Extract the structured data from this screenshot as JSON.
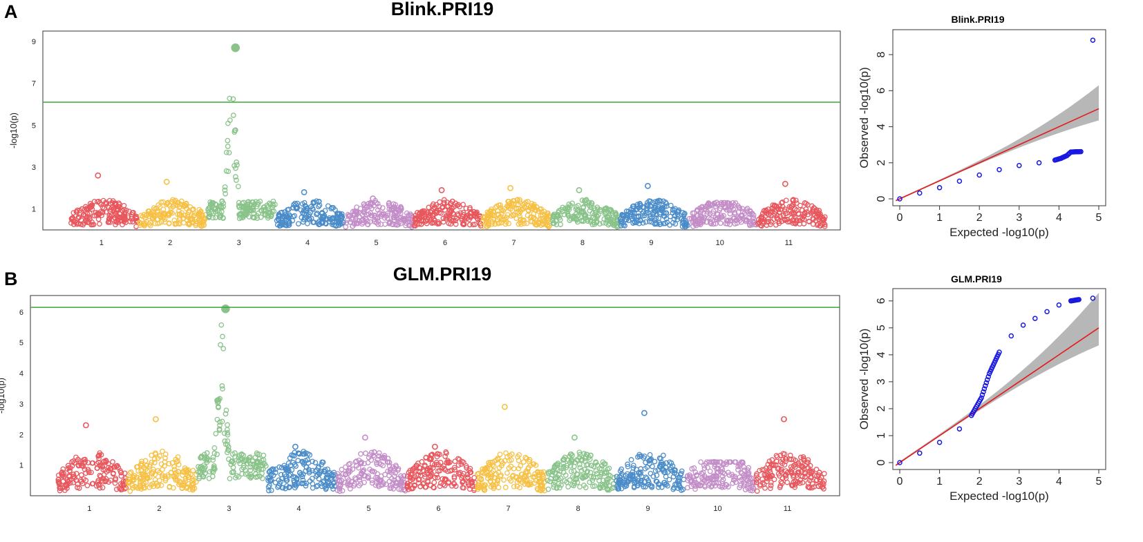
{
  "panels": [
    {
      "letter": "A",
      "chart_data": [
        {
          "type": "scatter",
          "kind": "manhattan",
          "title": "Blink.PRI19",
          "ylabel": "-log10(p)",
          "xlabel": "",
          "chromosomes": [
            "1",
            "2",
            "3",
            "4",
            "5",
            "6",
            "7",
            "8",
            "9",
            "10",
            "11"
          ],
          "chromosome_colors": [
            "#e8575d",
            "#f6c044",
            "#89c38a",
            "#4a8cc9",
            "#c38dc8",
            "#e8575d",
            "#f6c044",
            "#89c38a",
            "#4a8cc9",
            "#c38dc8",
            "#e8575d"
          ],
          "y_ticks": [
            1,
            3,
            5,
            7,
            9
          ],
          "ylim": [
            0,
            9.3
          ],
          "threshold": 6.1,
          "threshold_color": "#3aa63a",
          "chromosome_peak_values": [
            2.6,
            2.3,
            8.7,
            1.8,
            1.5,
            1.9,
            2.0,
            1.9,
            2.1,
            1.3,
            2.2
          ],
          "top_hit": {
            "chromosome": "3",
            "value": 8.7
          }
        },
        {
          "type": "scatter",
          "kind": "qq",
          "title": "Blink.PRI19",
          "xlabel": "Expected -log10(p)",
          "ylabel": "Observed -log10(p)",
          "x_ticks": [
            0,
            1,
            2,
            3,
            4,
            5
          ],
          "y_ticks": [
            0,
            2,
            4,
            6,
            8
          ],
          "xlim": [
            0,
            5
          ],
          "ylim": [
            0,
            9
          ],
          "point_color": "#1818e0",
          "line_color": "#e41a1c",
          "band_color": "#aaaaaa",
          "points": [
            [
              0,
              0
            ],
            [
              0.5,
              0.32
            ],
            [
              1,
              0.62
            ],
            [
              1.5,
              0.98
            ],
            [
              2,
              1.32
            ],
            [
              2.5,
              1.62
            ],
            [
              3,
              1.85
            ],
            [
              3.5,
              2.0
            ],
            [
              3.9,
              2.15
            ],
            [
              4.05,
              2.25
            ],
            [
              4.2,
              2.4
            ],
            [
              4.3,
              2.6
            ],
            [
              4.55,
              2.62
            ],
            [
              4.85,
              8.8
            ]
          ]
        }
      ]
    },
    {
      "letter": "B",
      "chart_data": [
        {
          "type": "scatter",
          "kind": "manhattan",
          "title": "GLM.PRI19",
          "ylabel": "-log10(p)",
          "xlabel": "",
          "chromosomes": [
            "1",
            "2",
            "3",
            "4",
            "5",
            "6",
            "7",
            "8",
            "9",
            "10",
            "11"
          ],
          "chromosome_colors": [
            "#e8575d",
            "#f6c044",
            "#89c38a",
            "#4a8cc9",
            "#c38dc8",
            "#e8575d",
            "#f6c044",
            "#89c38a",
            "#4a8cc9",
            "#c38dc8",
            "#e8575d"
          ],
          "y_ticks": [
            1,
            2,
            3,
            4,
            5,
            6
          ],
          "ylim": [
            0,
            6.4
          ],
          "threshold": 6.15,
          "threshold_color": "#3aa63a",
          "chromosome_peak_values": [
            2.3,
            2.5,
            6.1,
            1.6,
            1.9,
            1.6,
            2.9,
            1.9,
            2.7,
            1.1,
            2.5
          ],
          "top_hit": {
            "chromosome": "3",
            "value": 6.1
          }
        },
        {
          "type": "scatter",
          "kind": "qq",
          "title": "GLM.PRI19",
          "xlabel": "Expected -log10(p)",
          "ylabel": "Observed -log10(p)",
          "x_ticks": [
            0,
            1,
            2,
            3,
            4,
            5
          ],
          "y_ticks": [
            0,
            1,
            2,
            3,
            4,
            5,
            6
          ],
          "xlim": [
            0,
            5
          ],
          "ylim": [
            0,
            6.2
          ],
          "point_color": "#1818e0",
          "line_color": "#e41a1c",
          "band_color": "#aaaaaa",
          "points": [
            [
              0,
              0
            ],
            [
              0.5,
              0.35
            ],
            [
              1,
              0.75
            ],
            [
              1.5,
              1.25
            ],
            [
              1.8,
              1.75
            ],
            [
              2.05,
              2.4
            ],
            [
              2.25,
              3.3
            ],
            [
              2.5,
              4.1
            ],
            [
              2.8,
              4.7
            ],
            [
              3.1,
              5.1
            ],
            [
              3.4,
              5.35
            ],
            [
              3.7,
              5.6
            ],
            [
              4.0,
              5.85
            ],
            [
              4.3,
              6.0
            ],
            [
              4.5,
              6.05
            ],
            [
              4.85,
              6.1
            ]
          ]
        }
      ]
    }
  ]
}
